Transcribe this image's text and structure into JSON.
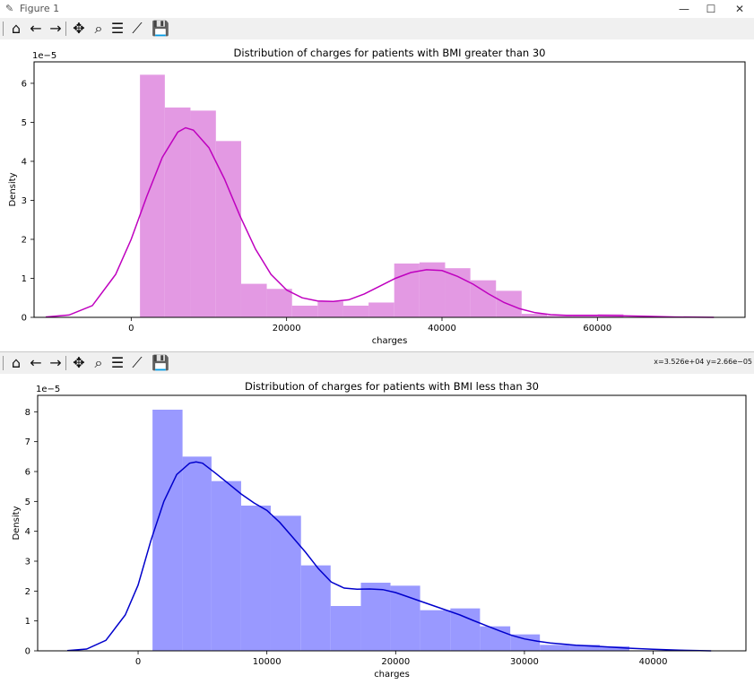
{
  "window": {
    "title": "Figure 1",
    "icon": "matplotlib-icon",
    "controls": {
      "minimize": "—",
      "maximize": "☐",
      "close": "✕"
    }
  },
  "toolbar": {
    "buttons": [
      {
        "name": "home-icon",
        "glyph": "⌂"
      },
      {
        "name": "back-arrow-icon",
        "glyph": "←"
      },
      {
        "name": "forward-arrow-icon",
        "glyph": "→"
      },
      {
        "name": "pan-icon",
        "glyph": "✥"
      },
      {
        "name": "zoom-icon",
        "glyph": "⌕"
      },
      {
        "name": "subplots-icon",
        "glyph": "☰"
      },
      {
        "name": "axes-edit-icon",
        "glyph": "⟋"
      },
      {
        "name": "save-icon",
        "glyph": "💾"
      }
    ]
  },
  "second_toolbar": {
    "coords": "x=3.526e+04 y=2.66e−05"
  },
  "chart_data": [
    {
      "type": "bar",
      "title": "Distribution of charges for patients with BMI greater than 30",
      "xlabel": "charges",
      "ylabel": "Density",
      "offset_label": "1e−5",
      "xlim": [
        -12500,
        79000
      ],
      "ylim": [
        0,
        6.55
      ],
      "xticks": [
        0,
        20000,
        40000,
        60000
      ],
      "xtick_labels": [
        "0",
        "20000",
        "40000",
        "60000"
      ],
      "yticks": [
        0,
        1,
        2,
        3,
        4,
        5,
        6
      ],
      "ytick_labels": [
        "0",
        "1",
        "2",
        "3",
        "4",
        "5",
        "6"
      ],
      "bar_color": "#e399e3",
      "kde_color": "#bf00bf",
      "bins": [
        {
          "x0": 1130,
          "x1": 4330,
          "y": 6.22
        },
        {
          "x0": 4330,
          "x1": 7630,
          "y": 5.38
        },
        {
          "x0": 7630,
          "x1": 10900,
          "y": 5.3
        },
        {
          "x0": 10900,
          "x1": 14150,
          "y": 4.52
        },
        {
          "x0": 14150,
          "x1": 17450,
          "y": 0.86
        },
        {
          "x0": 17450,
          "x1": 20700,
          "y": 0.73
        },
        {
          "x0": 20700,
          "x1": 24000,
          "y": 0.3
        },
        {
          "x0": 24000,
          "x1": 27300,
          "y": 0.41
        },
        {
          "x0": 27300,
          "x1": 30550,
          "y": 0.3
        },
        {
          "x0": 30550,
          "x1": 33850,
          "y": 0.38
        },
        {
          "x0": 33850,
          "x1": 37100,
          "y": 1.38
        },
        {
          "x0": 37100,
          "x1": 40400,
          "y": 1.41
        },
        {
          "x0": 40400,
          "x1": 43650,
          "y": 1.26
        },
        {
          "x0": 43650,
          "x1": 46950,
          "y": 0.95
        },
        {
          "x0": 46950,
          "x1": 50250,
          "y": 0.68
        },
        {
          "x0": 50250,
          "x1": 53500,
          "y": 0.09
        },
        {
          "x0": 53500,
          "x1": 56800,
          "y": 0.04
        },
        {
          "x0": 56800,
          "x1": 60050,
          "y": 0.04
        },
        {
          "x0": 60050,
          "x1": 63350,
          "y": 0.08
        }
      ],
      "kde": {
        "x": [
          -11000,
          -8000,
          -5000,
          -2000,
          0,
          2000,
          4000,
          6000,
          7000,
          8000,
          10000,
          12000,
          14000,
          16000,
          18000,
          20000,
          22000,
          24000,
          26000,
          28000,
          30000,
          32000,
          34000,
          36000,
          38000,
          40000,
          42000,
          44000,
          46000,
          48000,
          50000,
          52000,
          54000,
          56000,
          58000,
          60000,
          63000,
          66000,
          70000,
          75000
        ],
        "y": [
          0.01,
          0.06,
          0.3,
          1.1,
          2.0,
          3.1,
          4.1,
          4.75,
          4.86,
          4.8,
          4.35,
          3.55,
          2.6,
          1.75,
          1.1,
          0.7,
          0.5,
          0.42,
          0.41,
          0.45,
          0.6,
          0.8,
          1.0,
          1.15,
          1.22,
          1.2,
          1.05,
          0.85,
          0.6,
          0.38,
          0.22,
          0.12,
          0.07,
          0.05,
          0.05,
          0.05,
          0.04,
          0.03,
          0.01,
          0.0
        ]
      }
    },
    {
      "type": "bar",
      "title": "Distribution of charges for patients with BMI less than 30",
      "xlabel": "charges",
      "ylabel": "Density",
      "offset_label": "1e−5",
      "xlim": [
        -7800,
        47200
      ],
      "ylim": [
        0,
        8.55
      ],
      "xticks": [
        0,
        10000,
        20000,
        30000,
        40000
      ],
      "xtick_labels": [
        "0",
        "10000",
        "20000",
        "30000",
        "40000"
      ],
      "yticks": [
        0,
        1,
        2,
        3,
        4,
        5,
        6,
        7,
        8
      ],
      "ytick_labels": [
        "0",
        "1",
        "2",
        "3",
        "4",
        "5",
        "6",
        "7",
        "8"
      ],
      "bar_color": "#9999ff",
      "kde_color": "#0000cc",
      "bins": [
        {
          "x0": 1120,
          "x1": 3450,
          "y": 8.07
        },
        {
          "x0": 3450,
          "x1": 5700,
          "y": 6.5
        },
        {
          "x0": 5700,
          "x1": 8000,
          "y": 5.68
        },
        {
          "x0": 8000,
          "x1": 10300,
          "y": 4.86
        },
        {
          "x0": 10300,
          "x1": 12650,
          "y": 4.52
        },
        {
          "x0": 12650,
          "x1": 14950,
          "y": 2.86
        },
        {
          "x0": 14950,
          "x1": 17300,
          "y": 1.5
        },
        {
          "x0": 17300,
          "x1": 19600,
          "y": 2.28
        },
        {
          "x0": 19600,
          "x1": 21900,
          "y": 2.18
        },
        {
          "x0": 21900,
          "x1": 24250,
          "y": 1.36
        },
        {
          "x0": 24250,
          "x1": 26550,
          "y": 1.42
        },
        {
          "x0": 26550,
          "x1": 28900,
          "y": 0.82
        },
        {
          "x0": 28900,
          "x1": 31200,
          "y": 0.55
        },
        {
          "x0": 31200,
          "x1": 33550,
          "y": 0.2
        },
        {
          "x0": 33550,
          "x1": 35850,
          "y": 0.2
        },
        {
          "x0": 35850,
          "x1": 38150,
          "y": 0.15
        }
      ],
      "kde": {
        "x": [
          -5500,
          -4000,
          -2500,
          -1000,
          0,
          1000,
          2000,
          3000,
          4000,
          4500,
          5000,
          6000,
          7000,
          8000,
          9000,
          10000,
          11000,
          12000,
          13000,
          14000,
          15000,
          16000,
          17000,
          18000,
          19000,
          20000,
          21000,
          22000,
          23000,
          24000,
          25000,
          26000,
          27000,
          28000,
          29000,
          30000,
          31000,
          32000,
          34000,
          36000,
          38000,
          40000,
          42000,
          44500
        ],
        "y": [
          0.01,
          0.06,
          0.35,
          1.2,
          2.2,
          3.7,
          5.0,
          5.9,
          6.28,
          6.32,
          6.28,
          5.95,
          5.6,
          5.25,
          4.95,
          4.7,
          4.3,
          3.8,
          3.3,
          2.75,
          2.3,
          2.1,
          2.06,
          2.07,
          2.05,
          1.95,
          1.8,
          1.65,
          1.5,
          1.35,
          1.2,
          1.02,
          0.85,
          0.68,
          0.52,
          0.4,
          0.32,
          0.26,
          0.19,
          0.14,
          0.09,
          0.05,
          0.02,
          0.0
        ]
      }
    }
  ]
}
